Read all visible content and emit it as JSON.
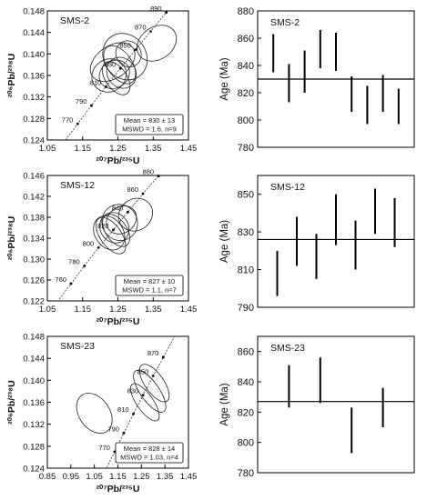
{
  "chart_data": [
    {
      "type": "concordia",
      "sample": "SMS-2",
      "xlabel": "²⁰⁷Pb/²³⁵U",
      "ylabel": "²⁰⁶Pb/²³⁸U",
      "xlim": [
        1.05,
        1.45
      ],
      "ylim": [
        0.124,
        0.148
      ],
      "xticks": [
        "1.05",
        "1.15",
        "1.25",
        "1.35",
        "1.45"
      ],
      "yticks": [
        "0.124",
        "0.128",
        "0.132",
        "0.136",
        "0.140",
        "0.144",
        "0.148"
      ],
      "concordia_ages": [
        {
          "label": "770",
          "x": 1.136,
          "y": 0.127
        },
        {
          "label": "790",
          "x": 1.175,
          "y": 0.1304
        },
        {
          "label": "810",
          "x": 1.216,
          "y": 0.1339
        },
        {
          "label": "830",
          "x": 1.257,
          "y": 0.1373
        },
        {
          "label": "850",
          "x": 1.3,
          "y": 0.1408
        },
        {
          "label": "870",
          "x": 1.343,
          "y": 0.1442
        },
        {
          "label": "890",
          "x": 1.387,
          "y": 0.1477
        }
      ],
      "ellipses": [
        {
          "x": 1.235,
          "y": 0.1385,
          "rx": 0.07,
          "ry": 0.003
        },
        {
          "x": 1.27,
          "y": 0.1395,
          "rx": 0.06,
          "ry": 0.0045
        },
        {
          "x": 1.24,
          "y": 0.1362,
          "rx": 0.045,
          "ry": 0.0025
        },
        {
          "x": 1.225,
          "y": 0.136,
          "rx": 0.05,
          "ry": 0.003
        },
        {
          "x": 1.255,
          "y": 0.138,
          "rx": 0.035,
          "ry": 0.004
        },
        {
          "x": 1.26,
          "y": 0.1365,
          "rx": 0.04,
          "ry": 0.003
        },
        {
          "x": 1.28,
          "y": 0.14,
          "rx": 0.035,
          "ry": 0.0025
        },
        {
          "x": 1.245,
          "y": 0.1355,
          "rx": 0.03,
          "ry": 0.0035
        },
        {
          "x": 1.36,
          "y": 0.142,
          "rx": 0.06,
          "ry": 0.003
        }
      ],
      "result": {
        "line1": "Mean = 830 ± 13",
        "line2": "MSWD = 1.6, n=9"
      }
    },
    {
      "type": "bar-errorbar",
      "sample": "SMS-2",
      "ylabel": "Age (Ma)",
      "ylim": [
        780,
        880
      ],
      "yticks": [
        "780",
        "800",
        "820",
        "840",
        "860",
        "880"
      ],
      "mean": 830,
      "bars": [
        [
          835,
          863
        ],
        [
          813,
          841
        ],
        [
          820,
          851
        ],
        [
          838,
          866
        ],
        [
          836,
          864
        ],
        [
          806,
          832
        ],
        [
          797,
          825
        ],
        [
          806,
          833
        ],
        [
          797,
          823
        ]
      ]
    },
    {
      "type": "concordia",
      "sample": "SMS-12",
      "xlabel": "²⁰⁷Pb/²³⁵U",
      "ylabel": "²⁰⁶Pb/²³⁸U",
      "xlim": [
        1.05,
        1.45
      ],
      "ylim": [
        0.122,
        0.146
      ],
      "xticks": [
        "1.05",
        "1.15",
        "1.25",
        "1.35",
        "1.45"
      ],
      "yticks": [
        "0.122",
        "0.126",
        "0.130",
        "0.134",
        "0.138",
        "0.142",
        "0.146"
      ],
      "concordia_ages": [
        {
          "label": "760",
          "x": 1.117,
          "y": 0.1253
        },
        {
          "label": "780",
          "x": 1.155,
          "y": 0.1287
        },
        {
          "label": "800",
          "x": 1.195,
          "y": 0.1322
        },
        {
          "label": "820",
          "x": 1.237,
          "y": 0.1356
        },
        {
          "label": "840",
          "x": 1.278,
          "y": 0.139
        },
        {
          "label": "860",
          "x": 1.321,
          "y": 0.1425
        },
        {
          "label": "880",
          "x": 1.365,
          "y": 0.1459
        }
      ],
      "ellipses": [
        {
          "x": 1.255,
          "y": 0.137,
          "rx": 0.05,
          "ry": 0.0035
        },
        {
          "x": 1.24,
          "y": 0.136,
          "rx": 0.04,
          "ry": 0.003
        },
        {
          "x": 1.225,
          "y": 0.135,
          "rx": 0.04,
          "ry": 0.0035
        },
        {
          "x": 1.23,
          "y": 0.1345,
          "rx": 0.03,
          "ry": 0.004
        },
        {
          "x": 1.26,
          "y": 0.1375,
          "rx": 0.045,
          "ry": 0.0025
        },
        {
          "x": 1.245,
          "y": 0.1355,
          "rx": 0.03,
          "ry": 0.0035
        },
        {
          "x": 1.3,
          "y": 0.1385,
          "rx": 0.05,
          "ry": 0.003
        }
      ],
      "result": {
        "line1": "Mean = 827 ± 10",
        "line2": "MSWD = 1.1, n=7"
      }
    },
    {
      "type": "bar-errorbar",
      "sample": "SMS-12",
      "ylabel": "Age (Ma)",
      "ylim": [
        790,
        860
      ],
      "yticks": [
        "790",
        "810",
        "830",
        "850"
      ],
      "mean": 826,
      "bars": [
        [
          796,
          820
        ],
        [
          812,
          838
        ],
        [
          805,
          829
        ],
        [
          823,
          850
        ],
        [
          810,
          836
        ],
        [
          829,
          853
        ],
        [
          822,
          848
        ]
      ]
    },
    {
      "type": "concordia",
      "sample": "SMS-23",
      "xlabel": "²⁰⁷Pb/²³⁵U",
      "ylabel": "²⁰⁶Pb/²³⁸U",
      "xlim": [
        0.85,
        1.45
      ],
      "ylim": [
        0.124,
        0.148
      ],
      "xticks": [
        "0.85",
        "0.95",
        "1.05",
        "1.15",
        "1.25",
        "1.35",
        "1.45"
      ],
      "yticks": [
        "0.124",
        "0.128",
        "0.132",
        "0.136",
        "0.140",
        "0.144",
        "0.148"
      ],
      "concordia_ages": [
        {
          "label": "770",
          "x": 1.136,
          "y": 0.127
        },
        {
          "label": "790",
          "x": 1.175,
          "y": 0.1304
        },
        {
          "label": "810",
          "x": 1.216,
          "y": 0.1339
        },
        {
          "label": "830",
          "x": 1.257,
          "y": 0.1373
        },
        {
          "label": "850",
          "x": 1.3,
          "y": 0.1408
        },
        {
          "label": "870",
          "x": 1.343,
          "y": 0.1442
        }
      ],
      "ellipses": [
        {
          "x": 1.05,
          "y": 0.134,
          "rx": 0.065,
          "ry": 0.004
        },
        {
          "x": 1.285,
          "y": 0.138,
          "rx": 0.04,
          "ry": 0.0045
        },
        {
          "x": 1.305,
          "y": 0.1395,
          "rx": 0.04,
          "ry": 0.004
        },
        {
          "x": 1.265,
          "y": 0.136,
          "rx": 0.035,
          "ry": 0.004
        }
      ],
      "result": {
        "line1": "Mean = 828 ± 14",
        "line2": "MSWD = 1.03, n=4"
      }
    },
    {
      "type": "bar-errorbar",
      "sample": "SMS-23",
      "ylabel": "Age (Ma)",
      "ylim": [
        780,
        870
      ],
      "yticks": [
        "780",
        "800",
        "820",
        "840",
        "860"
      ],
      "mean": 827,
      "bars": [
        [
          823,
          851
        ],
        [
          826,
          856
        ],
        [
          793,
          823
        ],
        [
          810,
          836
        ]
      ]
    }
  ]
}
